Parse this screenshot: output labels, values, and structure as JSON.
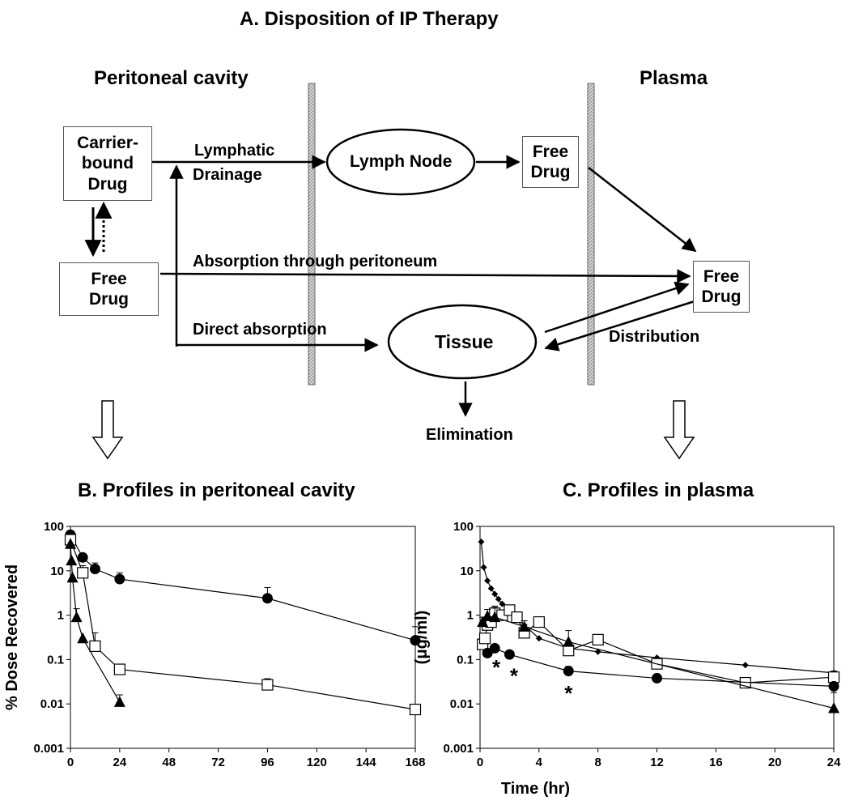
{
  "diagram": {
    "title": "A. Disposition of IP Therapy",
    "peritoneal_label": "Peritoneal cavity",
    "plasma_label": "Plasma",
    "carrier_bound_drug": [
      "Carrier-",
      "bound",
      "Drug"
    ],
    "free_drug_peritoneal": [
      "Free",
      "Drug"
    ],
    "lymph_node": "Lymph Node",
    "free_drug_lymph": [
      "Free",
      "Drug"
    ],
    "free_drug_plasma": [
      "Free",
      "Drug"
    ],
    "tissue": "Tissue",
    "lymphatic_drainage": [
      "Lymphatic",
      "Drainage"
    ],
    "absorption_peritoneum": "Absorption through peritoneum",
    "direct_absorption": "Direct absorption",
    "distribution": "Distribution",
    "elimination": "Elimination"
  },
  "chart_data": [
    {
      "type": "scatter",
      "title": "B. Profiles in peritoneal cavity",
      "xlabel": "",
      "ylabel": "% Dose Recovered",
      "yscale": "log",
      "xlim": [
        0,
        168
      ],
      "ylim": [
        0.001,
        100
      ],
      "x_ticks": [
        0,
        24,
        48,
        72,
        96,
        120,
        144,
        168
      ],
      "y_ticks": [
        0.001,
        0.01,
        0.1,
        1,
        10,
        100
      ],
      "y_tick_labels": [
        "0.001",
        "0.01",
        "0.1",
        "1",
        "10",
        "100"
      ],
      "grid": false,
      "series": [
        {
          "marker": "circle",
          "x": [
            0,
            6,
            12,
            24,
            96,
            168
          ],
          "y": [
            65,
            20,
            11,
            6.5,
            2.4,
            0.27
          ],
          "err_up": [
            0,
            0,
            4,
            2.5,
            1.8,
            0.28
          ]
        },
        {
          "marker": "square",
          "x": [
            0,
            6,
            12,
            24,
            96,
            168
          ],
          "y": [
            50,
            9,
            0.2,
            0.06,
            0.027,
            0.0075
          ],
          "err_up": [
            0,
            4,
            0.2,
            0.01,
            0.01,
            0
          ]
        },
        {
          "marker": "triangle",
          "x": [
            0,
            0.5,
            1,
            3,
            6,
            24
          ],
          "y": [
            40,
            17,
            7,
            0.9,
            0.3,
            0.011
          ],
          "err_up": [
            0,
            0,
            0,
            0.5,
            0,
            0.005
          ]
        }
      ]
    },
    {
      "type": "scatter",
      "title": "C. Profiles in plasma",
      "xlabel": "Time (hr)",
      "ylabel": "(μg/ml)",
      "yscale": "log",
      "xlim": [
        0,
        24
      ],
      "ylim": [
        0.001,
        100
      ],
      "x_ticks": [
        0,
        4,
        8,
        12,
        16,
        20,
        24
      ],
      "y_ticks": [
        0.001,
        0.01,
        0.1,
        1,
        10,
        100
      ],
      "y_tick_labels": [
        "0.001",
        "0.01",
        "0.1",
        "1",
        "10",
        "100"
      ],
      "grid": false,
      "series": [
        {
          "marker": "diamond",
          "x": [
            0.08,
            0.25,
            0.5,
            0.75,
            1,
            1.25,
            1.5,
            2,
            3,
            4,
            6,
            8,
            12,
            18,
            24
          ],
          "y": [
            45,
            12,
            6,
            4,
            3,
            2.3,
            1.8,
            1.2,
            0.6,
            0.3,
            0.18,
            0.15,
            0.11,
            0.075,
            0.05
          ],
          "err_up": []
        },
        {
          "marker": "square",
          "x": [
            0.17,
            0.33,
            0.5,
            0.75,
            1,
            1.5,
            2,
            2.5,
            3,
            4,
            6,
            8,
            12,
            18,
            24
          ],
          "y": [
            0.22,
            0.3,
            0.6,
            0.7,
            1.1,
            1.0,
            1.3,
            0.9,
            0.4,
            0.7,
            0.16,
            0.28,
            0.08,
            0.03,
            0.04
          ],
          "err_up": [
            0,
            0,
            0,
            0.3,
            0.5,
            0.3,
            0.3,
            0,
            0,
            0,
            0,
            0.05,
            0.02,
            0,
            0.015
          ]
        },
        {
          "marker": "triangle",
          "x": [
            0.17,
            0.5,
            1,
            3,
            6,
            24
          ],
          "y": [
            0.7,
            0.95,
            0.9,
            0.55,
            0.25,
            0.008
          ],
          "err_up": [
            0.2,
            0.4,
            0.6,
            0.2,
            0.2,
            0.01
          ]
        },
        {
          "marker": "circle",
          "x": [
            0.5,
            1,
            2,
            6,
            12,
            24
          ],
          "y": [
            0.14,
            0.18,
            0.13,
            0.055,
            0.038,
            0.025
          ],
          "err_up": [
            0,
            0,
            0,
            0.015,
            0,
            0
          ]
        }
      ],
      "annotations": [
        {
          "text": "*",
          "x": 1.1,
          "y": 0.07
        },
        {
          "text": "*",
          "x": 2.3,
          "y": 0.045
        },
        {
          "text": "*",
          "x": 6.0,
          "y": 0.018
        }
      ]
    }
  ]
}
